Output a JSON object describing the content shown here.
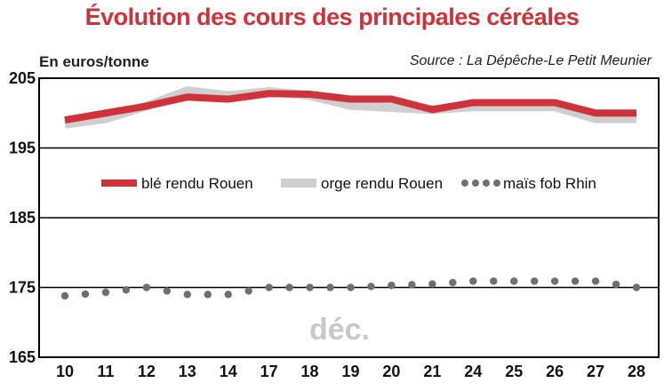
{
  "chart_data": {
    "type": "line",
    "title": "Évolution des cours des principales céréales",
    "ylabel": "En euros/tonne",
    "source": "Source : La Dépêche-Le Petit Meunier",
    "annotation": "déc.",
    "categories": [
      "10",
      "11",
      "12",
      "13",
      "14",
      "17",
      "18",
      "19",
      "20",
      "21",
      "24",
      "25",
      "26",
      "27",
      "28"
    ],
    "ylim": [
      165,
      205
    ],
    "yticks": [
      "165",
      "175",
      "185",
      "195",
      "205"
    ],
    "grid": true,
    "legend_position": "center",
    "series": [
      {
        "name": "blé rendu Rouen",
        "style": "thick-line",
        "color": "#d0323a",
        "values": [
          199,
          200,
          201,
          202.3,
          202,
          202.8,
          202.7,
          202,
          202,
          200.5,
          201.5,
          201.5,
          201.5,
          200,
          200
        ]
      },
      {
        "name": "orge rendu Rouen",
        "style": "thick-line",
        "color": "#cfcfcf",
        "values": [
          198.4,
          199.2,
          201,
          203.2,
          202.5,
          203.1,
          202.5,
          201.1,
          200.8,
          200.5,
          200.9,
          200.9,
          200.9,
          199.2,
          199.2
        ]
      },
      {
        "name": "maïs fob Rhin",
        "style": "dots",
        "color": "#6f6f6f",
        "values": [
          173.8,
          174.3,
          175,
          174,
          174,
          175,
          175,
          175,
          175.3,
          175.5,
          175.9,
          175.9,
          175.9,
          175.9,
          175
        ]
      }
    ]
  }
}
